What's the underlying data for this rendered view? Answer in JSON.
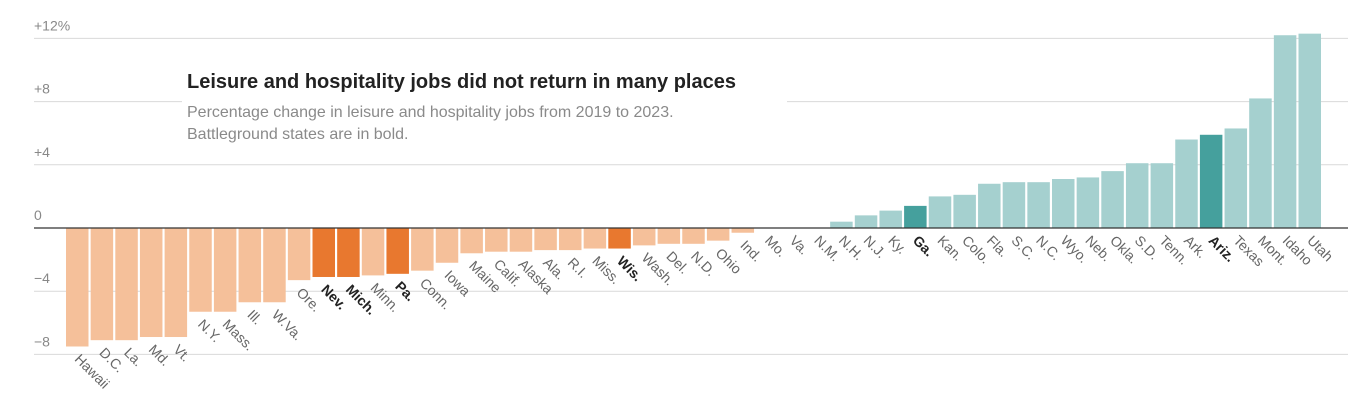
{
  "chart_data": {
    "type": "bar",
    "title": "Leisure and hospitality jobs did not return in many places",
    "subtitle": "Percentage change in leisure and hospitality jobs from 2019 to 2023. Battleground states are in bold.",
    "ylim": [
      -8,
      12
    ],
    "y_ticks": [
      {
        "value": 12,
        "label": "+12%"
      },
      {
        "value": 8,
        "label": "+8"
      },
      {
        "value": 4,
        "label": "+4"
      },
      {
        "value": 0,
        "label": "0"
      },
      {
        "value": -4,
        "label": "−4"
      },
      {
        "value": -8,
        "label": "−8"
      }
    ],
    "colors": {
      "negative": "#f5c09a",
      "negative_battleground": "#e8782f",
      "positive": "#a5d0cf",
      "positive_battleground": "#45a09d",
      "grid": "#d9d9d9",
      "zero_line": "#333333"
    },
    "categories": [
      "Hawaii",
      "D.C.",
      "La.",
      "Md.",
      "Vt.",
      "N.Y.",
      "Mass.",
      "Ill.",
      "W.Va.",
      "Ore.",
      "Nev.",
      "Mich.",
      "Minn.",
      "Pa.",
      "Conn.",
      "Iowa",
      "Maine",
      "Calif.",
      "Alaska",
      "Ala.",
      "R.I.",
      "Miss.",
      "Wis.",
      "Wash.",
      "Del.",
      "N.D.",
      "Ohio",
      "Ind.",
      "Mo.",
      "Va.",
      "N.M.",
      "N.H.",
      "N.J.",
      "Ky.",
      "Ga.",
      "Kan.",
      "Colo.",
      "Fla.",
      "S.C.",
      "N.C.",
      "Wyo.",
      "Neb.",
      "Okla.",
      "S.D.",
      "Tenn.",
      "Ark.",
      "Ariz.",
      "Texas",
      "Mont.",
      "Idaho",
      "Utah"
    ],
    "values": [
      -7.5,
      -7.1,
      -7.1,
      -6.9,
      -6.9,
      -5.3,
      -5.3,
      -4.7,
      -4.7,
      -3.3,
      -3.1,
      -3.1,
      -3.0,
      -2.9,
      -2.7,
      -2.2,
      -1.6,
      -1.5,
      -1.5,
      -1.4,
      -1.4,
      -1.3,
      -1.3,
      -1.1,
      -1.0,
      -1.0,
      -0.8,
      -0.3,
      0,
      0,
      0,
      0.4,
      0.8,
      1.1,
      1.4,
      2.0,
      2.1,
      2.8,
      2.9,
      2.9,
      3.1,
      3.2,
      3.6,
      4.1,
      4.1,
      5.6,
      5.9,
      6.3,
      8.2,
      12.2,
      12.3
    ],
    "battleground": [
      "Nev.",
      "Mich.",
      "Pa.",
      "Wis.",
      "Ga.",
      "Ariz."
    ]
  }
}
